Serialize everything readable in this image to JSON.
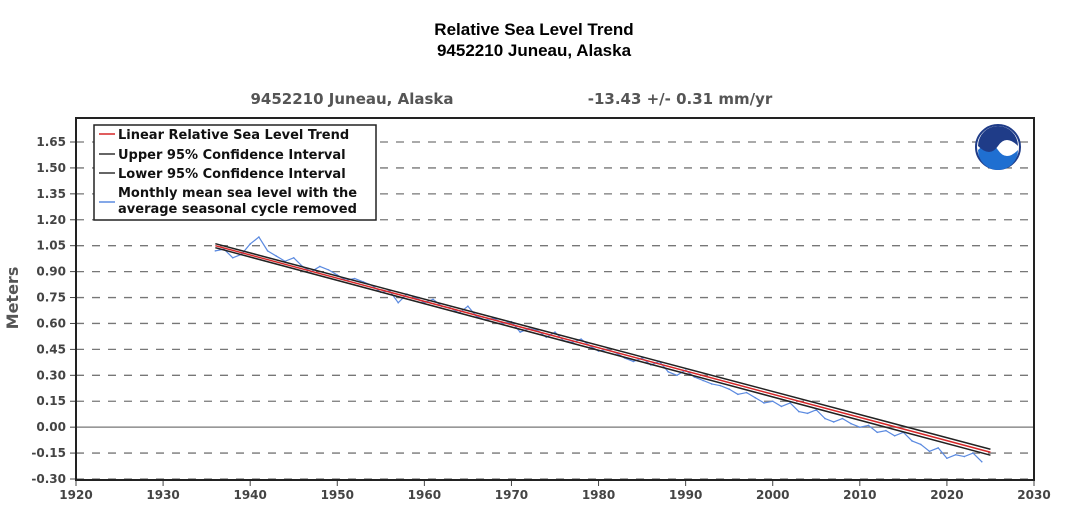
{
  "title_line1": "Relative Sea Level Trend",
  "title_line2": "9452210 Juneau, Alaska",
  "chart_data": {
    "type": "line",
    "station_label": "9452210 Juneau, Alaska",
    "trend_label": "-13.43 +/-  0.31 mm/yr",
    "ylabel": "Meters",
    "xlabel": "",
    "xlim": [
      1920,
      2030
    ],
    "ylim": [
      -0.3,
      1.75
    ],
    "xticks": [
      1920,
      1930,
      1940,
      1950,
      1960,
      1970,
      1980,
      1990,
      2000,
      2010,
      2020,
      2030
    ],
    "yticks": [
      "1.65",
      "1.50",
      "1.35",
      "1.20",
      "1.05",
      "0.90",
      "0.75",
      "0.60",
      "0.45",
      "0.30",
      "0.15",
      "0.00",
      "-0.15",
      "-0.30"
    ],
    "grid": "horizontal dashed",
    "legend_placement": "top-left",
    "legend": [
      {
        "label": "Linear Relative Sea Level Trend",
        "color": "#d62728"
      },
      {
        "label": "Upper 95% Confidence Interval",
        "color": "#333333"
      },
      {
        "label": "Lower 95% Confidence Interval",
        "color": "#333333"
      },
      {
        "label": "Monthly mean sea level with the",
        "label2": "average seasonal cycle removed",
        "color": "#5b8ae0"
      }
    ],
    "trend": {
      "x": [
        1936,
        2025
      ],
      "y": [
        1.05,
        -0.145
      ],
      "ci_mm_yr": 0.31,
      "rate_mm_yr": -13.43
    },
    "series": [
      {
        "x": [
          1936,
          1937,
          1938,
          1939,
          1940,
          1941,
          1942,
          1943,
          1944,
          1945,
          1946,
          1947,
          1948,
          1949,
          1950,
          1951,
          1952,
          1953,
          1954,
          1955,
          1956,
          1957,
          1958,
          1959,
          1960,
          1961,
          1962,
          1963,
          1964,
          1965,
          1966,
          1967,
          1968,
          1969,
          1970,
          1971,
          1972,
          1973,
          1974,
          1975,
          1976,
          1977,
          1978,
          1979,
          1980,
          1981,
          1982,
          1983,
          1984,
          1985,
          1986,
          1987,
          1988,
          1989,
          1990,
          1991,
          1992,
          1993,
          1994,
          1995,
          1996,
          1997,
          1998,
          1999,
          2000,
          2001,
          2002,
          2003,
          2004,
          2005,
          2006,
          2007,
          2008,
          2009,
          2010,
          2011,
          2012,
          2013,
          2014,
          2015,
          2016,
          2017,
          2018,
          2019,
          2020,
          2021,
          2022,
          2023,
          2024
        ],
        "y": [
          1.02,
          1.03,
          0.98,
          1.0,
          1.06,
          1.1,
          1.02,
          0.99,
          0.96,
          0.98,
          0.93,
          0.9,
          0.93,
          0.91,
          0.88,
          0.85,
          0.86,
          0.84,
          0.82,
          0.78,
          0.79,
          0.72,
          0.77,
          0.75,
          0.72,
          0.74,
          0.7,
          0.69,
          0.66,
          0.7,
          0.64,
          0.62,
          0.63,
          0.6,
          0.61,
          0.55,
          0.57,
          0.56,
          0.52,
          0.55,
          0.5,
          0.49,
          0.51,
          0.47,
          0.44,
          0.45,
          0.43,
          0.4,
          0.38,
          0.4,
          0.36,
          0.38,
          0.32,
          0.3,
          0.33,
          0.29,
          0.27,
          0.25,
          0.24,
          0.22,
          0.19,
          0.2,
          0.17,
          0.14,
          0.15,
          0.12,
          0.14,
          0.09,
          0.08,
          0.1,
          0.05,
          0.03,
          0.05,
          0.02,
          0.0,
          0.01,
          -0.03,
          -0.02,
          -0.05,
          -0.03,
          -0.08,
          -0.1,
          -0.14,
          -0.12,
          -0.18,
          -0.16,
          -0.17,
          -0.15,
          -0.2
        ]
      }
    ]
  }
}
